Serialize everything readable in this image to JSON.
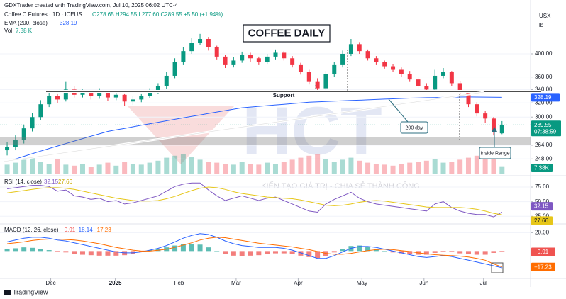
{
  "header": {
    "credit": "GDXTrader created with TradingView.com, Jul 10, 2025 06:02 UTC-4",
    "symbol": "Coffee C Futures · 1D · ICEUS",
    "ohlc": "O278.65 H294.55 L277.60 C289.55 +5.50 (+1.94%)",
    "footer": "TradingView"
  },
  "chart_data": [
    {
      "type": "candlestick",
      "title": "COFFEE DAILY",
      "currency": "USX",
      "unit": "lb",
      "log_scale": true,
      "ylim": [
        232,
        498
      ],
      "yticks": [
        {
          "value": 400,
          "label": "400.00"
        },
        {
          "value": 360,
          "label": "360.00"
        },
        {
          "value": 340,
          "label": "340.00"
        },
        {
          "value": 320,
          "label": "320.00"
        },
        {
          "value": 300,
          "label": "300.00"
        },
        {
          "value": 264,
          "label": "264.00"
        },
        {
          "value": 248,
          "label": "248.00"
        }
      ],
      "xlim": [
        -0.85,
        62.4
      ],
      "xticks": [
        {
          "value": 5.2,
          "label": "Dec"
        },
        {
          "value": 12.9,
          "label": "2025"
        },
        {
          "value": 20.5,
          "label": "Feb"
        },
        {
          "value": 27.3,
          "label": "Mar"
        },
        {
          "value": 34.7,
          "label": "Apr"
        },
        {
          "value": 42.3,
          "label": "May"
        },
        {
          "value": 49.7,
          "label": "Jun"
        },
        {
          "value": 56.8,
          "label": "Jul"
        }
      ],
      "up_color": "#089981",
      "down_color": "#f23645",
      "open": [
        258,
        262,
        270,
        285,
        300,
        318,
        330,
        325,
        340,
        332,
        335,
        330,
        336,
        328,
        332,
        322,
        325,
        330,
        338,
        345,
        362,
        385,
        405,
        420,
        428,
        412,
        395,
        380,
        388,
        398,
        392,
        385,
        395,
        402,
        392,
        380,
        368,
        352,
        342,
        365,
        380,
        400,
        418,
        405,
        392,
        385,
        378,
        372,
        365,
        356,
        345,
        340,
        362,
        368,
        350,
        335,
        318,
        305,
        298,
        278.65
      ],
      "high": [
        268,
        276,
        290,
        306,
        324,
        336,
        334,
        352,
        345,
        340,
        339,
        342,
        339,
        336,
        334,
        330,
        334,
        342,
        350,
        368,
        392,
        412,
        430,
        438,
        432,
        415,
        398,
        394,
        404,
        402,
        395,
        400,
        408,
        405,
        396,
        384,
        372,
        358,
        370,
        386,
        406,
        428,
        422,
        408,
        396,
        388,
        382,
        376,
        370,
        360,
        350,
        372,
        375,
        370,
        353,
        338,
        321,
        309,
        300,
        294.55
      ],
      "low": [
        252,
        258,
        266,
        281,
        296,
        314,
        320,
        322,
        328,
        328,
        325,
        326,
        323,
        324,
        316,
        317,
        321,
        327,
        334,
        341,
        358,
        380,
        400,
        416,
        406,
        390,
        375,
        376,
        384,
        386,
        380,
        381,
        390,
        388,
        376,
        364,
        348,
        336,
        338,
        360,
        376,
        396,
        400,
        388,
        380,
        374,
        368,
        360,
        352,
        340,
        335,
        338,
        358,
        346,
        331,
        314,
        301,
        292,
        276,
        277.6
      ],
      "close": [
        262,
        270,
        285,
        300,
        318,
        330,
        325,
        340,
        332,
        335,
        330,
        336,
        328,
        332,
        322,
        325,
        330,
        338,
        345,
        362,
        385,
        405,
        420,
        428,
        412,
        395,
        380,
        388,
        398,
        392,
        385,
        395,
        402,
        392,
        380,
        368,
        352,
        342,
        365,
        380,
        400,
        418,
        405,
        392,
        385,
        378,
        372,
        365,
        356,
        345,
        340,
        362,
        368,
        350,
        335,
        318,
        305,
        298,
        281,
        289.55
      ],
      "series": [
        {
          "name": "EMA (200, close)",
          "value_label": "328.19",
          "color": "#2962ff",
          "values": [
            245,
            248,
            251,
            254,
            257,
            260,
            263,
            266,
            269,
            272,
            275,
            278,
            281,
            283,
            285,
            287,
            289,
            291,
            293,
            295,
            297,
            299,
            301,
            303,
            305,
            307,
            309,
            311,
            313,
            314,
            315,
            316,
            317,
            318,
            319,
            320,
            321,
            321.5,
            322,
            322.5,
            323,
            323.5,
            324,
            324.5,
            325,
            325.5,
            326,
            326.5,
            327,
            327.3,
            327.6,
            327.9,
            328.2,
            328.4,
            328.6,
            328.7,
            328.6,
            328.5,
            328.3,
            328.19
          ]
        }
      ],
      "volume": {
        "name": "Vol",
        "value_label": "7.38 K",
        "axis_label": "7.38K",
        "values": [
          9,
          11,
          14,
          16,
          12,
          10,
          15,
          9,
          8,
          10,
          7,
          9,
          11,
          8,
          12,
          10,
          9,
          11,
          13,
          16,
          18,
          20,
          17,
          14,
          12,
          11,
          10,
          9,
          12,
          10,
          9,
          11,
          10,
          12,
          14,
          16,
          18,
          20,
          15,
          12,
          14,
          16,
          13,
          11,
          10,
          9,
          8,
          10,
          11,
          12,
          13,
          15,
          11,
          12,
          14,
          16,
          18,
          17,
          19,
          7.38
        ]
      },
      "last_price_label": "289.55",
      "countdown": "07:38:59",
      "annotations": [
        "Support",
        "200 day",
        "Inside Range"
      ],
      "watermark": "HCT",
      "slogan": "KIẾN TẠO GIÁ TRỊ - CHIA SẺ THÀNH CÔNG"
    },
    {
      "type": "line",
      "title": "RSI (14, close)",
      "ylim": [
        12,
        92
      ],
      "yticks": [
        {
          "value": 75,
          "label": "75.00"
        },
        {
          "value": 50,
          "label": "50.00"
        },
        {
          "value": 25,
          "label": "25.00"
        }
      ],
      "series": [
        {
          "value_label": "32.15",
          "color": "#7e57c2",
          "values": [
            72,
            74,
            76,
            78,
            78,
            76,
            68,
            70,
            60,
            58,
            54,
            56,
            50,
            52,
            46,
            48,
            52,
            56,
            60,
            68,
            76,
            80,
            82,
            82,
            70,
            60,
            52,
            56,
            60,
            56,
            52,
            56,
            58,
            52,
            46,
            40,
            34,
            32,
            46,
            54,
            60,
            66,
            56,
            50,
            46,
            44,
            42,
            40,
            38,
            36,
            34,
            46,
            50,
            40,
            34,
            30,
            28,
            28,
            24,
            32.15
          ]
        },
        {
          "value_label": "27.66",
          "color": "#e6c619",
          "values": [
            65,
            67,
            69,
            71,
            73,
            74,
            74,
            73,
            71,
            68,
            65,
            62,
            59,
            56,
            54,
            52,
            51,
            51,
            52,
            55,
            59,
            64,
            69,
            73,
            75,
            74,
            71,
            67,
            64,
            62,
            60,
            58,
            57,
            56,
            55,
            53,
            50,
            47,
            44,
            43,
            44,
            46,
            49,
            51,
            52,
            51,
            49,
            47,
            45,
            43,
            41,
            40,
            40,
            40,
            40,
            39,
            37,
            34,
            30,
            27.66
          ]
        }
      ]
    },
    {
      "type": "macd",
      "title": "MACD (12, 26, close)",
      "ylim": [
        -29,
        28
      ],
      "yticks": [
        {
          "value": 20,
          "label": "20.00"
        }
      ],
      "histogram": {
        "value_label": "−0.91",
        "up_color": "#26a69a",
        "down_color": "#ef5350",
        "values": [
          2,
          3,
          4,
          3.5,
          2.5,
          1,
          -1,
          -1.5,
          -3,
          -4,
          -4.5,
          -5,
          -5,
          -5,
          -4.5,
          -3,
          -1,
          1,
          2.2,
          4,
          6,
          7.5,
          8,
          7,
          4,
          0,
          -3.5,
          -5,
          -5.5,
          -5,
          -4.5,
          -3.5,
          -2.5,
          -2.5,
          -3.5,
          -5,
          -6.5,
          -7.5,
          -5.5,
          -1.5,
          2.5,
          5.5,
          6,
          4.5,
          2.5,
          0,
          -1.5,
          -2.5,
          -3.5,
          -4,
          -4,
          -2,
          -0.5,
          -1,
          -2.5,
          -3.5,
          -4,
          -4,
          -2,
          -0.91
        ]
      },
      "series": [
        {
          "value_label": "−18.14",
          "color": "#2962ff",
          "values": [
            10,
            12,
            14,
            15,
            15,
            14,
            12,
            11,
            9,
            7,
            5,
            3,
            1,
            -1,
            -2,
            -2,
            -1,
            1,
            3,
            6,
            10,
            14,
            17,
            19,
            18,
            15,
            11,
            8,
            6,
            5,
            4,
            4,
            4,
            3,
            1,
            -2,
            -5,
            -8,
            -8,
            -5,
            -1,
            3,
            5,
            5,
            4,
            2,
            0,
            -2,
            -4,
            -6,
            -7,
            -6,
            -5,
            -6,
            -8,
            -10,
            -12,
            -14,
            -16,
            -18.14
          ]
        },
        {
          "value_label": "−17.23",
          "color": "#ff6d00",
          "values": [
            8,
            9,
            10,
            11.5,
            12.5,
            13,
            13,
            12.5,
            12,
            11,
            9.5,
            8,
            6,
            4,
            2.5,
            1,
            0,
            0,
            0.8,
            2,
            4,
            6.5,
            9,
            12,
            14,
            15,
            14.5,
            13,
            11.5,
            10,
            8.5,
            7.5,
            6.5,
            5.5,
            4.5,
            3,
            1.5,
            -0.5,
            -2.5,
            -3.5,
            -3.5,
            -2.5,
            -1,
            0.5,
            1.5,
            2,
            1.5,
            0.5,
            -0.5,
            -2,
            -3,
            -4,
            -4.5,
            -5,
            -5.5,
            -6.5,
            -8,
            -10,
            -14,
            -17.23
          ]
        }
      ]
    }
  ]
}
